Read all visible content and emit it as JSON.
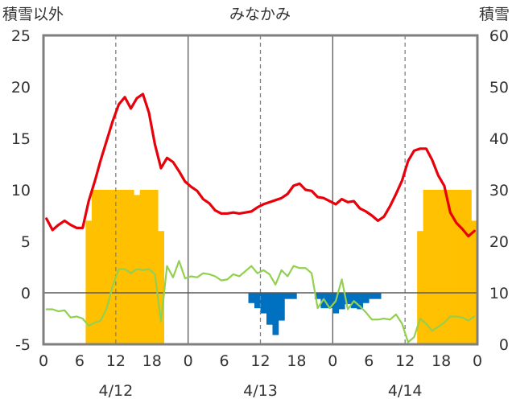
{
  "chart_data": {
    "type": "bar+line",
    "title": "みなかみ",
    "ylabel_left": "積雪以外",
    "ylabel_right": "積雪",
    "ylim_left": [
      -5,
      25
    ],
    "ylim_right": [
      0,
      60
    ],
    "yticks_left": [
      -5,
      0,
      5,
      10,
      15,
      20,
      25
    ],
    "yticks_right": [
      0,
      10,
      20,
      30,
      40,
      50,
      60
    ],
    "xlim_hours": [
      0,
      72
    ],
    "x_tick_labels": [
      "0",
      "6",
      "12",
      "18",
      "0",
      "6",
      "12",
      "18",
      "0",
      "6",
      "12",
      "18",
      "0"
    ],
    "date_labels": [
      {
        "label": "4/12",
        "hour": 12
      },
      {
        "label": "4/13",
        "hour": 36
      },
      {
        "label": "4/14",
        "hour": 60
      }
    ],
    "grid": "dashed vertical at 12:00, solid vertical at midnight",
    "colors": {
      "red_line": "#e8000b",
      "green_line": "#92d050",
      "orange_bars": "#ffc000",
      "blue_bars": "#0070c0",
      "purple_line": "#7030a0",
      "frame": "#7f7f7f"
    },
    "series": [
      {
        "type": "line",
        "axis": "left",
        "color": "#e8000b",
        "values": [
          7.2,
          6.1,
          6.6,
          7.0,
          6.6,
          6.3,
          6.3,
          8.9,
          10.8,
          12.9,
          14.8,
          16.7,
          18.3,
          19.0,
          17.9,
          18.9,
          19.3,
          17.5,
          14.4,
          12.1,
          13.1,
          12.7,
          11.8,
          10.8,
          10.3,
          9.9,
          9.1,
          8.7,
          8.0,
          7.7,
          7.7,
          7.8,
          7.7,
          7.8,
          7.9,
          8.3,
          8.6,
          8.8,
          9.0,
          9.2,
          9.6,
          10.4,
          10.6,
          10.0,
          9.9,
          9.3,
          9.2,
          8.9,
          8.6,
          9.1,
          8.8,
          8.9,
          8.2,
          7.9,
          7.5,
          7.0,
          7.4,
          8.4,
          9.6,
          10.9,
          12.8,
          13.8,
          14.0,
          14.0,
          12.9,
          11.4,
          10.4,
          7.8,
          6.8,
          6.2,
          5.5,
          6.0
        ]
      },
      {
        "type": "line",
        "axis": "left",
        "color": "#92d050",
        "values": [
          -1.6,
          -1.6,
          -1.8,
          -1.7,
          -2.4,
          -2.3,
          -2.5,
          -3.2,
          -2.9,
          -2.7,
          -1.5,
          0.7,
          2.3,
          2.3,
          1.9,
          2.3,
          2.2,
          2.3,
          1.8,
          -2.8,
          2.6,
          1.5,
          3.1,
          1.4,
          1.6,
          1.5,
          1.9,
          1.8,
          1.6,
          1.2,
          1.3,
          1.8,
          1.6,
          2.1,
          2.6,
          1.9,
          2.2,
          1.8,
          0.8,
          2.2,
          1.6,
          2.6,
          2.4,
          2.4,
          1.9,
          -1.5,
          -0.6,
          -1.5,
          -0.8,
          1.3,
          -1.6,
          -0.8,
          -1.3,
          -1.9,
          -2.6,
          -2.6,
          -2.5,
          -2.6,
          -2.1,
          -3.0,
          -4.8,
          -4.3,
          -2.5,
          -3.0,
          -3.7,
          -3.3,
          -2.9,
          -2.3,
          -2.3,
          -2.4,
          -2.7,
          -2.3
        ]
      },
      {
        "type": "bar",
        "axis": "left",
        "color": "#0070c0",
        "values": [
          0,
          0,
          0,
          0,
          0,
          0,
          0,
          0,
          0,
          0,
          0,
          0,
          0,
          0,
          0,
          0,
          0,
          0,
          0,
          0,
          0,
          0,
          0,
          0,
          0,
          0,
          0,
          0,
          0,
          0,
          0,
          0,
          0,
          0,
          -1,
          -1.5,
          -2,
          -3.1,
          -4.1,
          -2.7,
          -0.6,
          -0.6,
          0,
          0,
          0,
          -0.6,
          -1.5,
          -1.5,
          -2,
          -1.6,
          -1.1,
          -1.5,
          -1.6,
          -1.0,
          -0.6,
          -0.6,
          0,
          0,
          0,
          0,
          0,
          0,
          0,
          0,
          0,
          0,
          0,
          0,
          0,
          0,
          0,
          0
        ]
      },
      {
        "type": "bar",
        "axis": "right",
        "color": "#ffc000",
        "values": [
          0,
          0,
          0,
          0,
          0,
          0,
          0,
          24,
          30,
          30,
          30,
          30,
          30,
          30,
          30,
          29,
          30,
          30,
          30,
          22,
          0,
          0,
          0,
          0,
          0,
          0,
          0,
          0,
          0,
          0,
          0,
          0,
          0,
          0,
          0,
          0,
          0,
          0,
          0,
          0,
          0,
          0,
          0,
          0,
          0,
          0,
          0,
          0,
          0,
          0,
          0,
          0,
          0,
          0,
          0,
          0,
          0,
          0,
          0,
          0,
          0,
          0,
          22,
          30,
          30,
          30,
          30,
          30,
          30,
          30,
          30,
          24
        ]
      },
      {
        "type": "line",
        "axis": "left",
        "color": "#7030a0",
        "values": [
          -5,
          -5,
          -5,
          -5,
          -5,
          -5,
          -5,
          -5,
          -5,
          -5,
          -5,
          -5,
          -5,
          -5,
          -5,
          -5,
          -5,
          -5,
          -5,
          -5,
          -5,
          -5,
          -5,
          -5,
          -5,
          -5,
          -5,
          -5,
          -5,
          -5,
          -5,
          -5,
          -5,
          -5,
          -5,
          -5,
          -5,
          -5,
          -5,
          -5,
          -5,
          -5,
          -5,
          -5,
          -5,
          -5,
          -5,
          -5,
          -5,
          -5,
          -5,
          -5,
          -5,
          -5,
          -5,
          -5,
          -5,
          -5,
          -5,
          -5,
          -5,
          -5,
          -5,
          -5,
          -5,
          -5,
          -5,
          -5,
          -5,
          -5,
          -5,
          -5,
          -5
        ]
      }
    ]
  }
}
